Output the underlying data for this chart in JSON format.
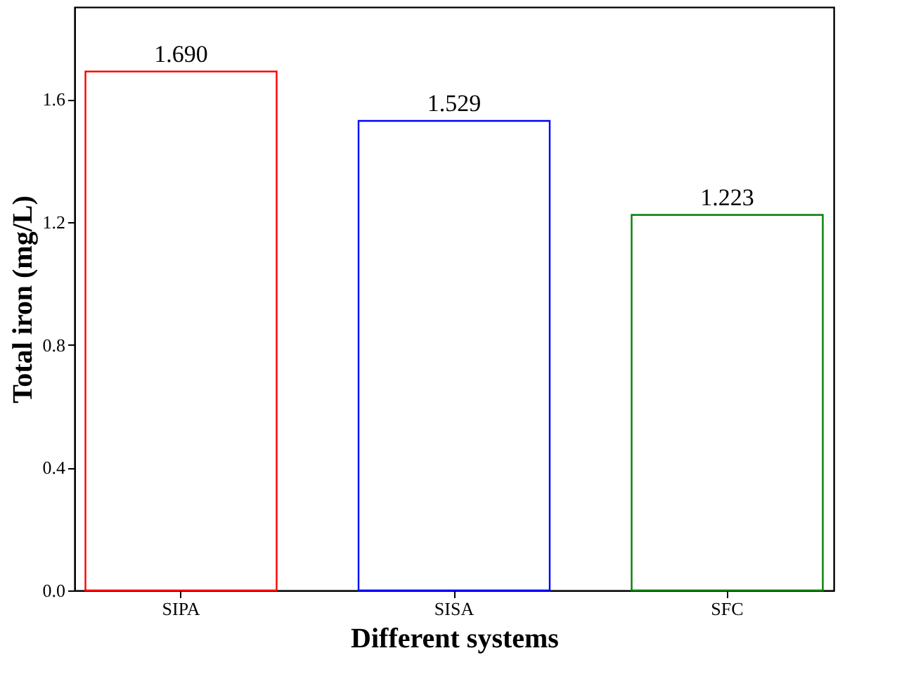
{
  "chart_data": {
    "type": "bar",
    "xlabel": "Different systems",
    "ylabel": "Total iron (mg/L)",
    "categories": [
      "SIPA",
      "SISA",
      "SFC"
    ],
    "values": [
      1.69,
      1.529,
      1.223
    ],
    "colors": [
      "#ff0000",
      "#0000ff",
      "#008000"
    ],
    "value_labels": [
      "1.690",
      "1.529",
      "1.223"
    ],
    "ylim": [
      0,
      1.9
    ],
    "yticks": [
      {
        "value": 0,
        "label": "0.0"
      },
      {
        "value": 0.4,
        "label": "0.4"
      },
      {
        "value": 0.8,
        "label": "0.8"
      },
      {
        "value": 1.2,
        "label": "1.2"
      },
      {
        "value": 1.6,
        "label": "1.6"
      }
    ],
    "grid": false
  }
}
